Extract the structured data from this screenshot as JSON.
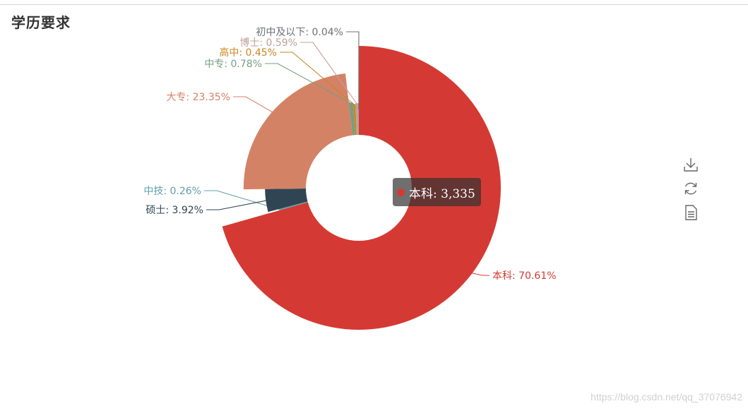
{
  "title": "学历要求",
  "chart_data": {
    "type": "pie",
    "style": "rose-donut",
    "slices": [
      {
        "name": "本科",
        "label": "本科: 70.61%",
        "percent": 70.61,
        "color": "#d43a33"
      },
      {
        "name": "中技",
        "label": "中技: 0.26%",
        "percent": 0.26,
        "color": "#61a0a8"
      },
      {
        "name": "硕士",
        "label": "硕士: 3.92%",
        "percent": 3.92,
        "color": "#2f4554"
      },
      {
        "name": "大专",
        "label": "大专: 23.35%",
        "percent": 23.35,
        "color": "#d48265"
      },
      {
        "name": "中专",
        "label": "中专: 0.78%",
        "percent": 0.78,
        "color": "#749f83"
      },
      {
        "name": "高中",
        "label": "高中: 0.45%",
        "percent": 0.45,
        "color": "#ca8622"
      },
      {
        "name": "博士",
        "label": "博士: 0.59%",
        "percent": 0.59,
        "color": "#bda29a"
      },
      {
        "name": "初中及以下",
        "label": "初中及以下: 0.04%",
        "percent": 0.04,
        "color": "#6e7074"
      }
    ]
  },
  "tooltip": {
    "text": "本科: 3,335",
    "color": "#d43a33"
  },
  "toolbox": [
    {
      "icon": "download-icon"
    },
    {
      "icon": "refresh-icon"
    },
    {
      "icon": "data-view-icon"
    }
  ],
  "watermark": "https://blog.csdn.net/qq_37076942"
}
